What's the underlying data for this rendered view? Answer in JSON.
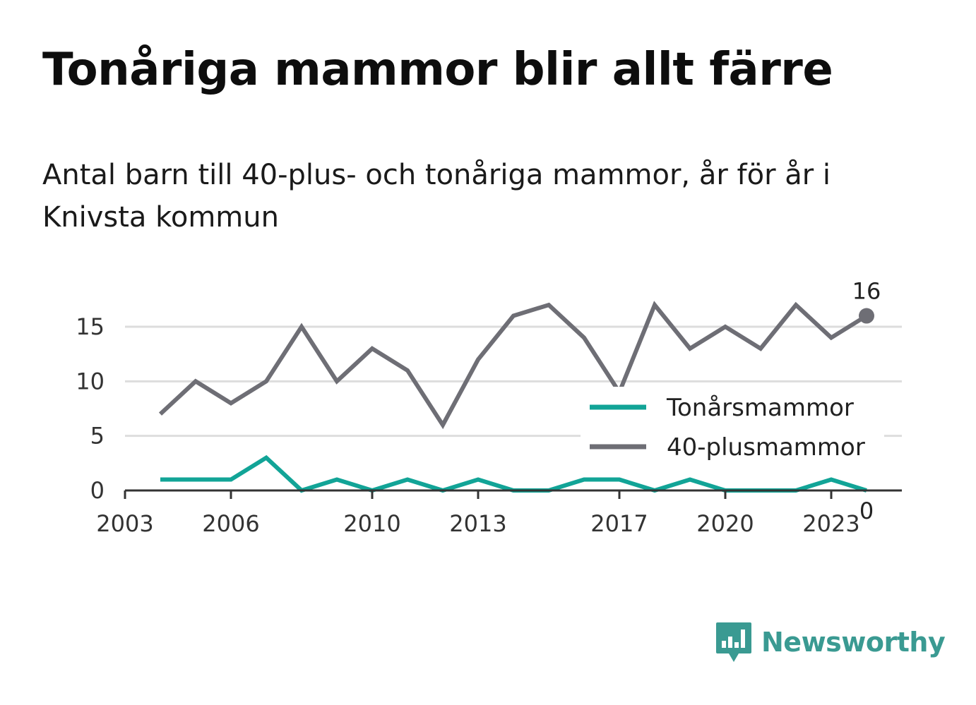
{
  "title": "Tonåriga mammor blir allt färre",
  "subtitle": "Antal barn till 40-plus- och tonåriga mammor, år för år i Knivsta kommun",
  "logo_text": "Newsworthy",
  "colors": {
    "teen": "#12a497",
    "forty": "#6e6e75",
    "grid": "#dddddd",
    "axis": "#333333"
  },
  "chart_data": {
    "type": "line",
    "title": "Tonåriga mammor blir allt färre",
    "x": [
      2004,
      2005,
      2006,
      2007,
      2008,
      2009,
      2010,
      2011,
      2012,
      2013,
      2014,
      2015,
      2016,
      2017,
      2018,
      2019,
      2020,
      2021,
      2022,
      2023,
      2024
    ],
    "series": [
      {
        "name": "Tonårsmammor",
        "color": "#12a497",
        "values": [
          1,
          1,
          1,
          3,
          0,
          1,
          0,
          1,
          0,
          1,
          0,
          0,
          1,
          1,
          0,
          1,
          0,
          0,
          0,
          1,
          0
        ],
        "end_label": "0"
      },
      {
        "name": "40-plusmammor",
        "color": "#6e6e75",
        "values": [
          7,
          10,
          8,
          10,
          15,
          10,
          13,
          11,
          6,
          12,
          16,
          17,
          14,
          9,
          17,
          13,
          15,
          13,
          17,
          14,
          16
        ],
        "end_label": "16"
      }
    ],
    "xticks": [
      "2003",
      "2006",
      "2010",
      "2013",
      "2017",
      "2020",
      "2023"
    ],
    "yticks": [
      "0",
      "5",
      "10",
      "15"
    ],
    "xlim": [
      2003,
      2025
    ],
    "ylim": [
      0,
      17
    ],
    "grid": true,
    "legend": "right"
  }
}
